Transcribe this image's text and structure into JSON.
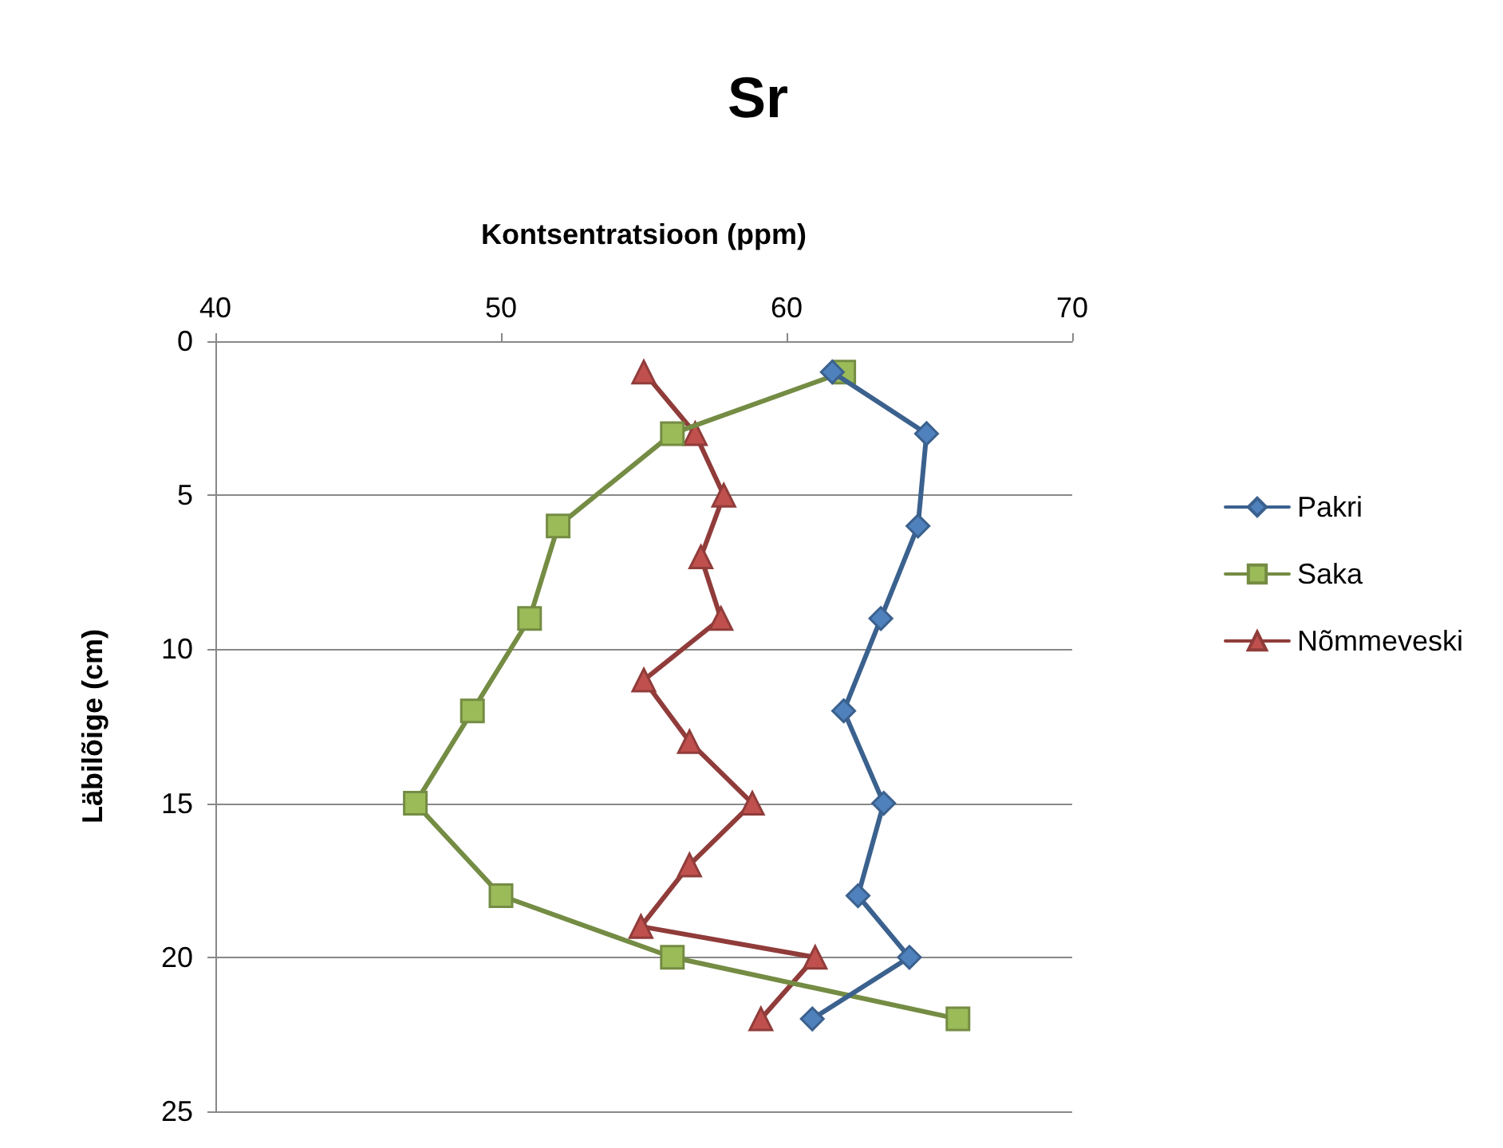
{
  "chart_data": {
    "type": "line",
    "title": "Sr",
    "xlabel": "Kontsentratsioon (ppm)",
    "ylabel": "Läbilõige (cm)",
    "xlim": [
      40,
      70
    ],
    "xticks": [
      40,
      50,
      60,
      70
    ],
    "ylim": [
      25,
      0
    ],
    "yticks": [
      0,
      5,
      10,
      15,
      20,
      25
    ],
    "grid": "y",
    "legend": "right",
    "series": [
      {
        "name": "Pakri",
        "color": "#4f81bd",
        "marker": "diamond",
        "x": [
          61.6,
          64.9,
          64.6,
          63.3,
          62.0,
          63.4,
          62.5,
          64.3,
          60.9
        ],
        "values": [
          1,
          3,
          6,
          9,
          12,
          15,
          18,
          20,
          22
        ]
      },
      {
        "name": "Saka",
        "color": "#9bbb59",
        "marker": "square",
        "x": [
          62,
          56,
          52,
          51,
          49,
          47,
          50,
          56,
          66
        ],
        "values": [
          1,
          3,
          6,
          9,
          12,
          15,
          18,
          20,
          22
        ]
      },
      {
        "name": "Nõmmeveski",
        "color": "#c0504d",
        "marker": "triangle",
        "x": [
          55,
          56.8,
          57.8,
          57,
          57.7,
          55,
          56.6,
          58.8,
          56.6,
          54.9,
          61,
          59.1
        ],
        "values": [
          1,
          3,
          5,
          7,
          9,
          11,
          13,
          15,
          17,
          19,
          20,
          22
        ]
      }
    ]
  }
}
